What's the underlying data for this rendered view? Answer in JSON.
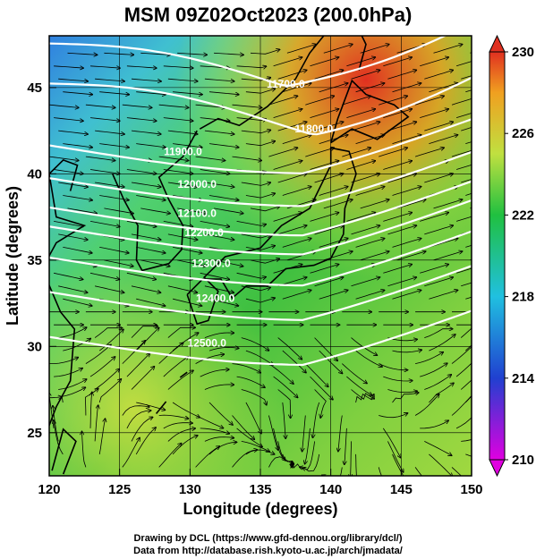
{
  "title": "MSM 09Z02Oct2023 (200.0hPa)",
  "xlabel": "Longitude (degrees)",
  "ylabel": "Latitude  (degrees)",
  "credit_line1": "Drawing by DCL (https://www.gfd-dennou.org/library/dcl/)",
  "credit_line2": "Data from http://database.rish.kyoto-u.ac.jp/arch/jmadata/",
  "x_range": [
    120,
    150
  ],
  "y_range": [
    22.5,
    48
  ],
  "x_ticks": [
    "120",
    "125",
    "130",
    "135",
    "140",
    "145",
    "150"
  ],
  "y_ticks": [
    "25",
    "30",
    "35",
    "40",
    "45"
  ],
  "colorbar": {
    "range": [
      210,
      230
    ],
    "labels": [
      "210",
      "214",
      "218",
      "222",
      "226",
      "230"
    ],
    "colors": [
      "#e000e0",
      "#2040d0",
      "#20c0e0",
      "#20c040",
      "#c0e040",
      "#f0a020",
      "#e03020"
    ]
  },
  "contours": [
    {
      "label": "11700.0",
      "lon": 136.8,
      "lat": 45.2
    },
    {
      "label": "11800.0",
      "lon": 138.8,
      "lat": 42.6
    },
    {
      "label": "11900.0",
      "lon": 129.5,
      "lat": 41.3
    },
    {
      "label": "12000.0",
      "lon": 130.5,
      "lat": 39.4
    },
    {
      "label": "12100.0",
      "lon": 130.5,
      "lat": 37.7
    },
    {
      "label": "12200.0",
      "lon": 131.0,
      "lat": 36.6
    },
    {
      "label": "12300.0",
      "lon": 131.5,
      "lat": 34.8
    },
    {
      "label": "12400.0",
      "lon": 131.8,
      "lat": 32.8
    },
    {
      "label": "12500.0",
      "lon": 131.2,
      "lat": 30.2
    }
  ]
}
